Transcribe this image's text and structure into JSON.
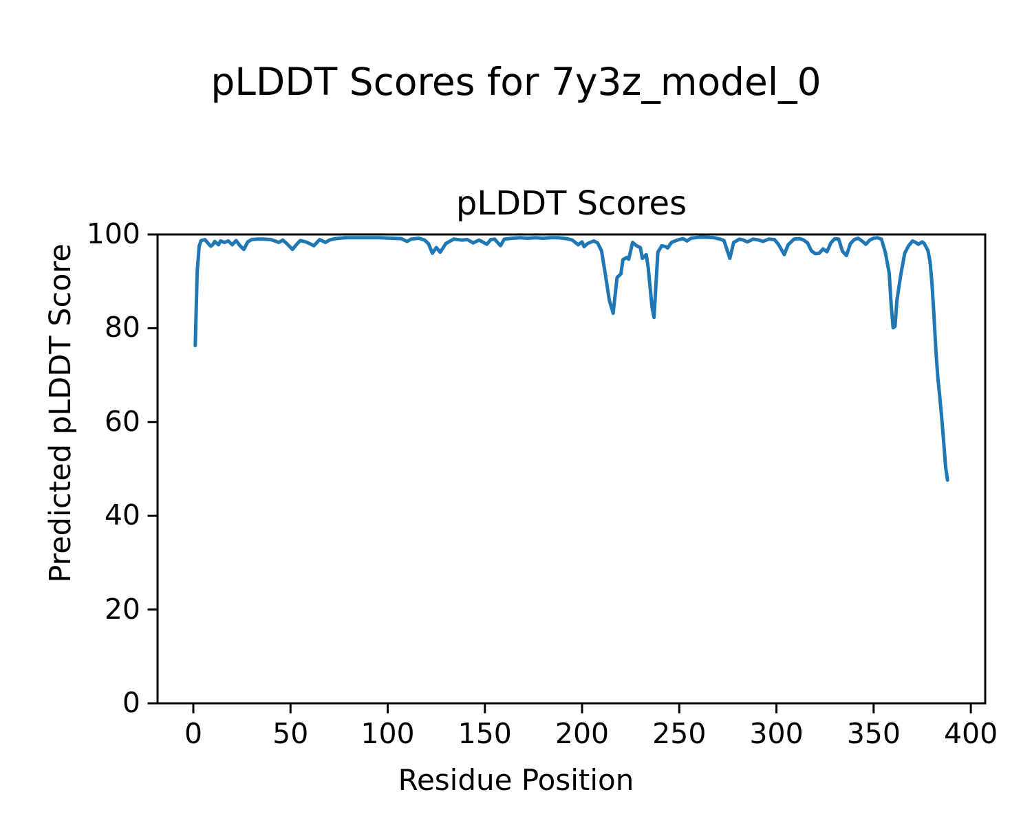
{
  "figure": {
    "suptitle": "pLDDT Scores for 7y3z_model_0"
  },
  "chart_data": {
    "type": "line",
    "title": "pLDDT Scores",
    "xlabel": "Residue Position",
    "ylabel": "Predicted pLDDT Score",
    "xlim": [
      -18.4,
      407.4
    ],
    "ylim": [
      0,
      100
    ],
    "xticks": [
      0,
      50,
      100,
      150,
      200,
      250,
      300,
      350,
      400
    ],
    "yticks": [
      0,
      20,
      40,
      60,
      80,
      100
    ],
    "grid": false,
    "legend": "none",
    "line_color": "#1f77b4",
    "axis_color": "#000000",
    "series": [
      {
        "name": "pLDDT",
        "x": [
          1,
          2,
          3,
          4,
          6,
          8,
          9,
          10,
          11,
          13,
          14,
          16,
          18,
          20,
          22,
          24,
          26,
          28,
          30,
          33,
          36,
          40,
          44,
          46,
          48,
          51,
          53,
          55,
          58,
          60,
          62,
          65,
          68,
          70,
          73,
          78,
          84,
          90,
          96,
          102,
          107,
          110,
          112,
          116,
          119,
          121,
          123,
          125,
          127,
          130,
          134,
          138,
          141,
          144,
          147,
          151,
          153,
          155,
          158,
          160,
          164,
          168,
          172,
          176,
          180,
          184,
          188,
          192,
          195,
          198,
          200,
          201,
          203,
          206,
          208,
          210,
          212,
          214,
          216,
          218,
          220,
          221,
          223,
          224,
          226,
          228,
          230,
          231,
          233,
          234,
          236,
          237,
          239,
          241,
          243,
          244,
          246,
          249,
          252,
          254,
          256,
          260,
          264,
          268,
          271,
          273,
          276,
          278,
          281,
          283,
          285,
          288,
          291,
          293,
          296,
          299,
          301,
          304,
          306,
          309,
          312,
          314,
          316,
          318,
          320,
          322,
          324,
          326,
          328,
          330,
          332,
          334,
          336,
          338,
          340,
          342,
          344,
          346,
          348,
          350,
          352,
          354,
          356,
          358,
          359,
          360,
          361,
          362,
          364,
          366,
          368,
          370,
          372,
          373,
          375,
          376,
          378,
          379,
          380,
          381,
          382,
          383,
          384,
          385,
          386,
          387,
          388
        ],
        "y": [
          76.3,
          92,
          97.5,
          98.7,
          98.9,
          97.9,
          97.5,
          97.8,
          98.5,
          97.8,
          98.6,
          98.3,
          98.6,
          97.8,
          98.7,
          97.6,
          96.8,
          98.4,
          98.9,
          99,
          99,
          98.9,
          98.3,
          98.8,
          98.1,
          96.8,
          97.8,
          98.7,
          98.4,
          98,
          97.6,
          98.9,
          98.3,
          98.8,
          99.1,
          99.3,
          99.3,
          99.3,
          99.3,
          99.2,
          99.1,
          98.5,
          99,
          99.2,
          98.8,
          98,
          96,
          97.2,
          96.2,
          98.1,
          99,
          98.8,
          98.9,
          98.2,
          98.8,
          97.9,
          98.9,
          99,
          97.6,
          99,
          99.2,
          99.3,
          99.2,
          99.3,
          99.2,
          99.3,
          99.3,
          99.1,
          98.8,
          97.8,
          98.4,
          97.4,
          98.1,
          98.6,
          98.2,
          96.5,
          91.5,
          86,
          83.2,
          90.8,
          91.6,
          94.6,
          95.1,
          94.7,
          98.3,
          97.6,
          97.2,
          94.9,
          95.7,
          93,
          84.5,
          82.3,
          96.2,
          97.6,
          97.4,
          97.1,
          98.3,
          98.8,
          99.1,
          98.6,
          99.2,
          99.4,
          99.4,
          99.3,
          99,
          98.7,
          94.9,
          98.3,
          99,
          98.8,
          98.4,
          99,
          98.8,
          98.5,
          99,
          98.9,
          97.9,
          95.7,
          97.8,
          99,
          99.1,
          98.8,
          98.2,
          96.5,
          95.9,
          96,
          96.9,
          96.3,
          98.2,
          99.1,
          99,
          96.4,
          95.5,
          98,
          98.9,
          99.2,
          98.6,
          97.9,
          98.8,
          99.2,
          99.3,
          99,
          96.2,
          91.8,
          85,
          80.1,
          80.4,
          86,
          91.5,
          96,
          97.6,
          98.6,
          98.2,
          97.9,
          98.4,
          98.1,
          96.5,
          94.2,
          89.6,
          83,
          75.5,
          69.5,
          65.5,
          61,
          56,
          50.5,
          47.6
        ]
      }
    ]
  }
}
